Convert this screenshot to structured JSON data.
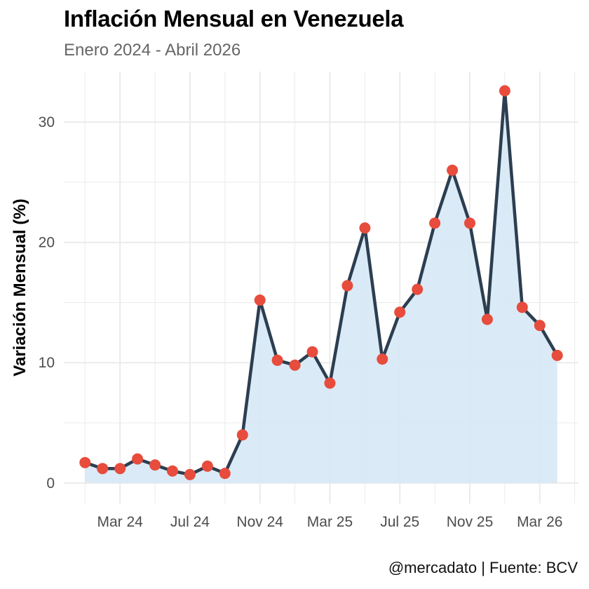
{
  "header": {
    "title": "Inflación Mensual en Venezuela",
    "subtitle": "Enero 2024 - Abril 2026"
  },
  "footer": {
    "caption": "@mercadato | Fuente: BCV"
  },
  "colors": {
    "line": "#2c3e50",
    "points": "#e74c3c",
    "area": "#d6e8f6",
    "grid": "#ebebeb"
  },
  "chart_data": {
    "type": "area",
    "ylabel": "Variación Mensual (%)",
    "xlabel": "",
    "x_start": "2024-01",
    "x_end": "2026-04",
    "x": [
      "2024-01",
      "2024-02",
      "2024-03",
      "2024-04",
      "2024-05",
      "2024-06",
      "2024-07",
      "2024-08",
      "2024-09",
      "2024-10",
      "2024-11",
      "2024-12",
      "2025-01",
      "2025-02",
      "2025-03",
      "2025-04",
      "2025-05",
      "2025-06",
      "2025-07",
      "2025-08",
      "2025-09",
      "2025-10",
      "2025-11",
      "2025-12",
      "2026-01",
      "2026-02",
      "2026-03",
      "2026-04"
    ],
    "values": [
      1.7,
      1.2,
      1.2,
      2.0,
      1.5,
      1.0,
      0.7,
      1.4,
      0.8,
      4.0,
      15.2,
      10.2,
      9.8,
      10.9,
      8.3,
      16.4,
      21.2,
      10.3,
      14.2,
      16.1,
      21.6,
      26.0,
      21.6,
      13.6,
      32.6,
      14.6,
      13.1,
      10.6
    ],
    "xticks": [
      {
        "label": "Mar 24",
        "x": "2024-03"
      },
      {
        "label": "Jul 24",
        "x": "2024-07"
      },
      {
        "label": "Nov 24",
        "x": "2024-11"
      },
      {
        "label": "Mar 25",
        "x": "2025-03"
      },
      {
        "label": "Jul 25",
        "x": "2025-07"
      },
      {
        "label": "Nov 25",
        "x": "2025-11"
      },
      {
        "label": "Mar 26",
        "x": "2026-03"
      }
    ],
    "yticks": [
      0,
      10,
      20,
      30
    ],
    "ylim": [
      -1.7,
      34.2
    ],
    "grid": true,
    "legend": "none"
  }
}
